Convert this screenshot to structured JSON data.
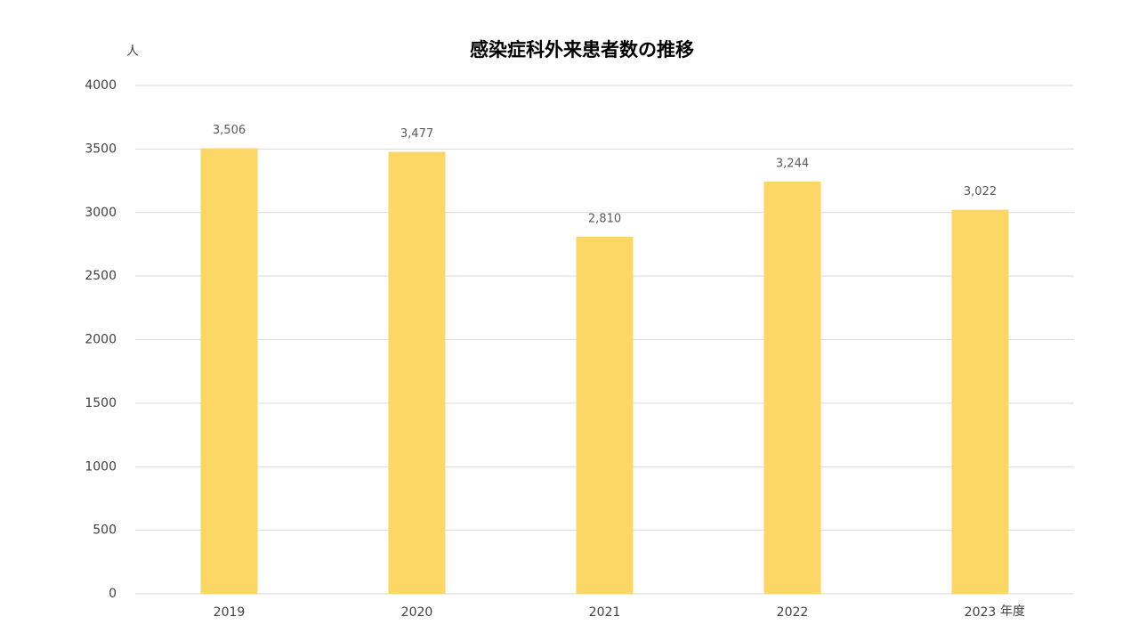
{
  "chart_data": {
    "type": "bar",
    "title": "感染症科外来患者数の推移",
    "y_label": "人",
    "x_label": "年度",
    "categories": [
      "2019",
      "2020",
      "2021",
      "2022",
      "2023"
    ],
    "values": [
      3506,
      3477,
      2810,
      3244,
      3022
    ],
    "value_labels": [
      "3,506",
      "3,477",
      "2,810",
      "3,244",
      "3,022"
    ],
    "color": "#fdd766",
    "ylim": [
      0,
      4000
    ],
    "yticks": [
      0,
      500,
      1000,
      1500,
      2000,
      2500,
      3000,
      3500,
      4000
    ],
    "grid": true
  }
}
